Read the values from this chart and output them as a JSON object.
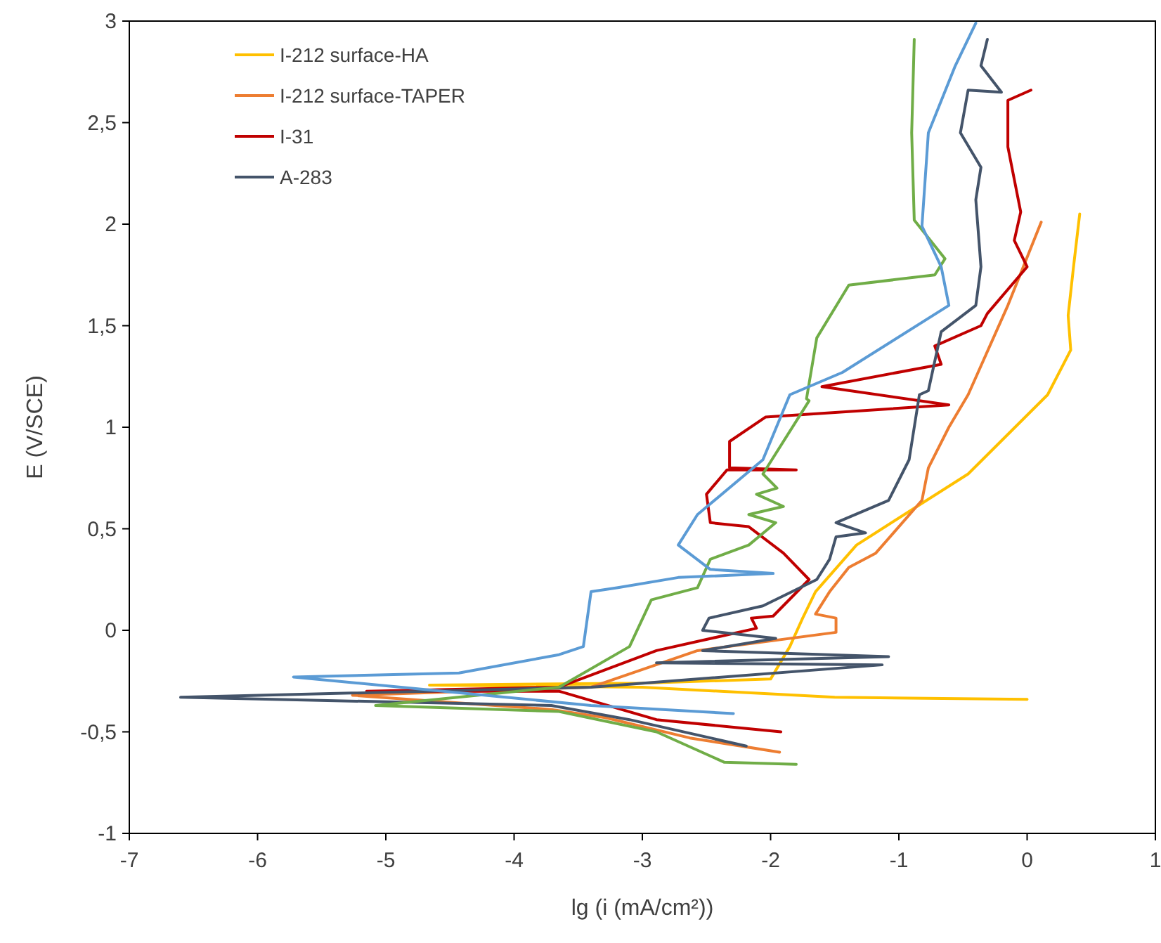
{
  "chart_data": {
    "type": "line",
    "xlabel": "lg (i (mA/cm²))",
    "ylabel": "E (V/SCE)",
    "xlim": [
      -7,
      1
    ],
    "xticks": [
      -7,
      -6,
      -5,
      -4,
      -3,
      -2,
      -1,
      0,
      1
    ],
    "ylim": [
      -1,
      3
    ],
    "yticks": [
      -1,
      {
        "value": -0.5,
        "label": "-0,5"
      },
      0,
      {
        "value": 0.5,
        "label": "0,5"
      },
      1,
      {
        "value": 1.5,
        "label": "1,5"
      },
      2,
      {
        "value": 2.5,
        "label": "2,5"
      },
      3
    ],
    "legend": "top left",
    "grid": false,
    "marker": "none",
    "line_style": "solid",
    "series": [
      {
        "name": "I-212 surface-HA",
        "color": "#ffc000",
        "x": [
          0,
          -1.5,
          -3,
          -4.66,
          -3,
          -2,
          -1.85,
          -1.75,
          -1.65,
          -1.33,
          -0.46,
          0.16,
          0.34,
          0.32,
          0.36,
          0.41
        ],
        "values": [
          -0.34,
          -0.33,
          -0.28,
          -0.27,
          -0.26,
          -0.24,
          -0.08,
          0.06,
          0.19,
          0.42,
          0.77,
          1.16,
          1.38,
          1.55,
          1.78,
          2.05
        ]
      },
      {
        "name": "I-212 surface-TAPER",
        "color": "#ed7d31",
        "x": [
          -1.93,
          -2.63,
          -3.29,
          -3.71,
          -5.26,
          -3.4,
          -2.57,
          -1.49,
          -1.49,
          -1.65,
          -1.54,
          -1.39,
          -1.18,
          -0.82,
          -0.77,
          -0.61,
          -0.46,
          -0.15,
          0.11
        ],
        "values": [
          -0.6,
          -0.53,
          -0.43,
          -0.39,
          -0.32,
          -0.28,
          -0.1,
          -0.01,
          0.06,
          0.08,
          0.19,
          0.31,
          0.38,
          0.64,
          0.8,
          1.0,
          1.16,
          1.6,
          2.01
        ]
      },
      {
        "name": "I-31",
        "color": "#c00000",
        "x": [
          -1.92,
          -2.89,
          -3.65,
          -5.15,
          -3.65,
          -2.89,
          -2.11,
          -2.15,
          -1.98,
          -1.7,
          -1.9,
          -2.17,
          -2.47,
          -2.5,
          -2.34,
          -1.8,
          -2.32,
          -2.32,
          -2.04,
          -0.61,
          -1.6,
          -0.67,
          -0.72,
          -0.36,
          -0.31,
          0,
          -0.1,
          -0.05,
          -0.15,
          -0.15,
          0.03
        ],
        "values": [
          -0.5,
          -0.44,
          -0.3,
          -0.3,
          -0.28,
          -0.1,
          0.01,
          0.06,
          0.07,
          0.25,
          0.38,
          0.51,
          0.53,
          0.67,
          0.79,
          0.79,
          0.8,
          0.93,
          1.05,
          1.11,
          1.2,
          1.31,
          1.4,
          1.5,
          1.56,
          1.79,
          1.92,
          2.06,
          2.38,
          2.61,
          2.66
        ]
      },
      {
        "name": "A-283",
        "color": "#44546a",
        "x": [
          -2.19,
          -3.1,
          -3.71,
          -6.6,
          -3.4,
          -1.13,
          -2.89,
          -1.08,
          -2.53,
          -1.96,
          -2.53,
          -2.48,
          -2.06,
          -1.64,
          -1.54,
          -1.49,
          -1.26,
          -1.49,
          -1.08,
          -0.92,
          -0.84,
          -0.77,
          -0.67,
          -0.4,
          -0.36,
          -0.4,
          -0.36,
          -0.52,
          -0.46,
          -0.2,
          -0.36,
          -0.31
        ],
        "values": [
          -0.57,
          -0.44,
          -0.37,
          -0.33,
          -0.28,
          -0.17,
          -0.16,
          -0.13,
          -0.1,
          -0.04,
          0,
          0.06,
          0.12,
          0.25,
          0.35,
          0.46,
          0.48,
          0.53,
          0.64,
          0.84,
          1.16,
          1.18,
          1.47,
          1.6,
          1.79,
          2.12,
          2.28,
          2.45,
          2.66,
          2.65,
          2.78,
          2.91
        ]
      },
      {
        "color": "#70ad47",
        "x": [
          -1.8,
          -2.36,
          -2.89,
          -3.65,
          -5.08,
          -3.65,
          -3.1,
          -2.93,
          -2.57,
          -2.47,
          -2.17,
          -1.96,
          -2.17,
          -1.9,
          -2.11,
          -1.95,
          -2.06,
          -1.7,
          -1.72,
          -1.64,
          -1.39,
          -0.72,
          -0.64,
          -0.88,
          -0.9,
          -0.88
        ],
        "values": [
          -0.66,
          -0.65,
          -0.5,
          -0.4,
          -0.37,
          -0.28,
          -0.08,
          0.15,
          0.21,
          0.35,
          0.42,
          0.53,
          0.57,
          0.61,
          0.67,
          0.7,
          0.77,
          1.13,
          1.14,
          1.44,
          1.7,
          1.75,
          1.83,
          2.02,
          2.45,
          2.91
        ]
      },
      {
        "color": "#5b9bd5",
        "x": [
          -2.29,
          -3.4,
          -5.72,
          -4.43,
          -3.65,
          -3.46,
          -3.4,
          -3.19,
          -2.72,
          -1.98,
          -2.47,
          -2.72,
          -2.57,
          -2.06,
          -1.85,
          -1.44,
          -0.61,
          -0.67,
          -0.82,
          -0.77,
          -0.56,
          -0.4
        ],
        "values": [
          -0.41,
          -0.37,
          -0.23,
          -0.21,
          -0.12,
          -0.08,
          0.19,
          0.21,
          0.26,
          0.28,
          0.3,
          0.42,
          0.57,
          0.84,
          1.16,
          1.27,
          1.6,
          1.79,
          1.99,
          2.45,
          2.78,
          2.99
        ]
      }
    ]
  }
}
